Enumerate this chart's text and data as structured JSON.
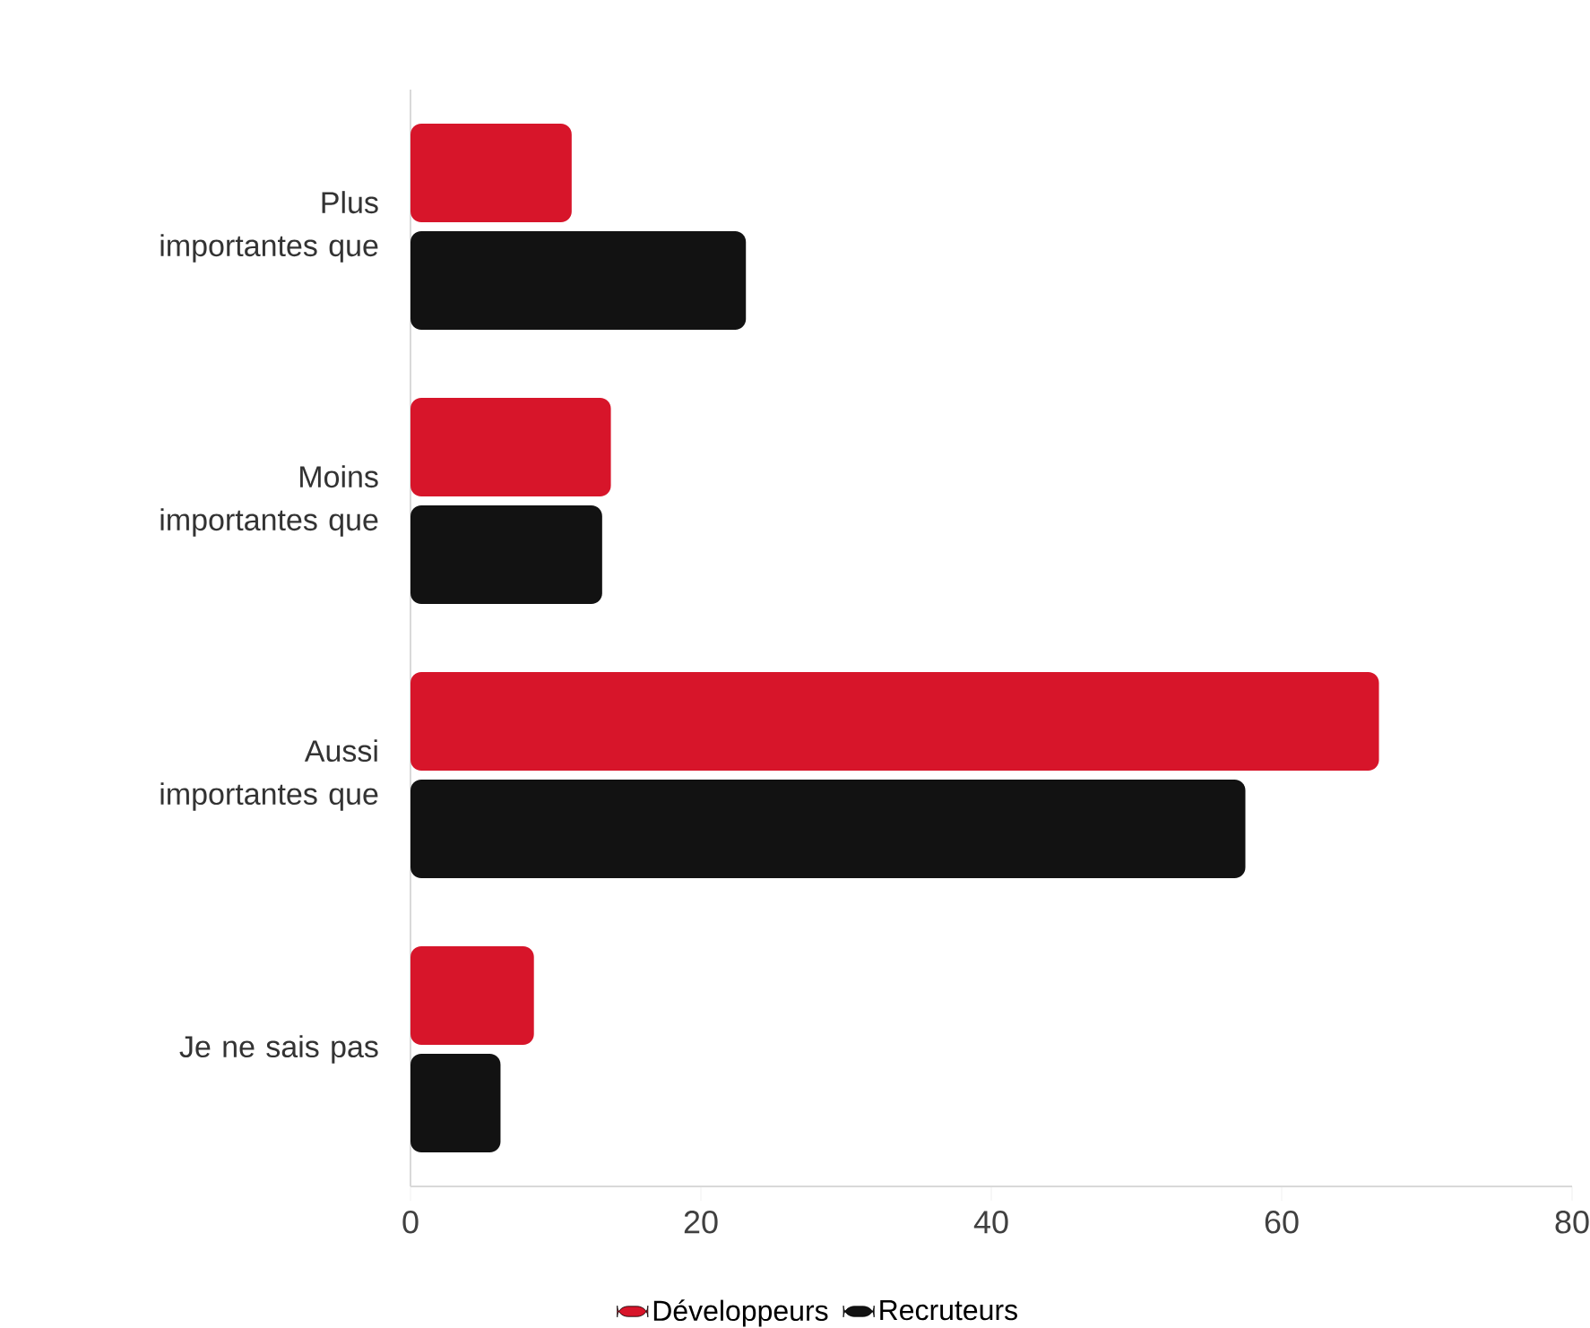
{
  "chart_data": {
    "type": "bar",
    "orientation": "horizontal",
    "categories": [
      "Plus importantes que",
      "Moins importantes que",
      "Aussi importantes que",
      "Je ne sais pas"
    ],
    "series": [
      {
        "name": "Développeurs",
        "color": "#d7152a",
        "values": [
          11.1,
          13.8,
          66.7,
          8.5
        ]
      },
      {
        "name": "Recruteurs",
        "color": "#121212",
        "values": [
          23.1,
          13.2,
          57.5,
          6.2
        ]
      }
    ],
    "xlim": [
      0,
      80
    ],
    "xticks": [
      0,
      20,
      40,
      60,
      80
    ],
    "grid": false,
    "legend": "bottom"
  }
}
